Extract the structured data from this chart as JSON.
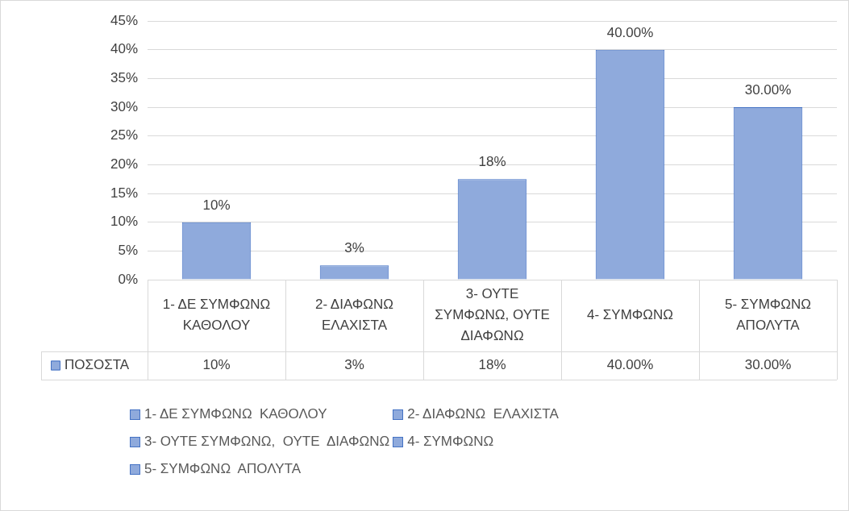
{
  "chart_data": {
    "type": "bar",
    "categories": [
      "1- ΔΕ ΣΥΜΦΩΝΩ  ΚΑΘΟΛΟΥ",
      "2- ΔΙΑΦΩΝΩ  ΕΛΑΧΙΣΤΑ",
      "3- ΟΥΤΕ ΣΥΜΦΩΝΩ,  ΟΥΤΕ  ΔΙΑΦΩΝΩ",
      "4- ΣΥΜΦΩΝΩ",
      "5- ΣΥΜΦΩΝΩ  ΑΠΟΛΥΤΑ"
    ],
    "series": [
      {
        "name": "ΠΟΣΟΣΤΑ",
        "color": "#8faadc",
        "values": [
          10,
          2.5,
          17.5,
          40,
          30
        ],
        "value_labels": [
          "10%",
          "3%",
          "18%",
          "40.00%",
          "30.00%"
        ]
      }
    ],
    "ylim": [
      0,
      45
    ],
    "yticks": [
      {
        "value": 0,
        "label": "0%"
      },
      {
        "value": 5,
        "label": "5%"
      },
      {
        "value": 10,
        "label": "10%"
      },
      {
        "value": 15,
        "label": "15%"
      },
      {
        "value": 20,
        "label": "20%"
      },
      {
        "value": 25,
        "label": "25%"
      },
      {
        "value": 30,
        "label": "30%"
      },
      {
        "value": 35,
        "label": "35%"
      },
      {
        "value": 40,
        "label": "40%"
      },
      {
        "value": 45,
        "label": "45%"
      }
    ],
    "grid": "y",
    "legend": "bottom"
  }
}
